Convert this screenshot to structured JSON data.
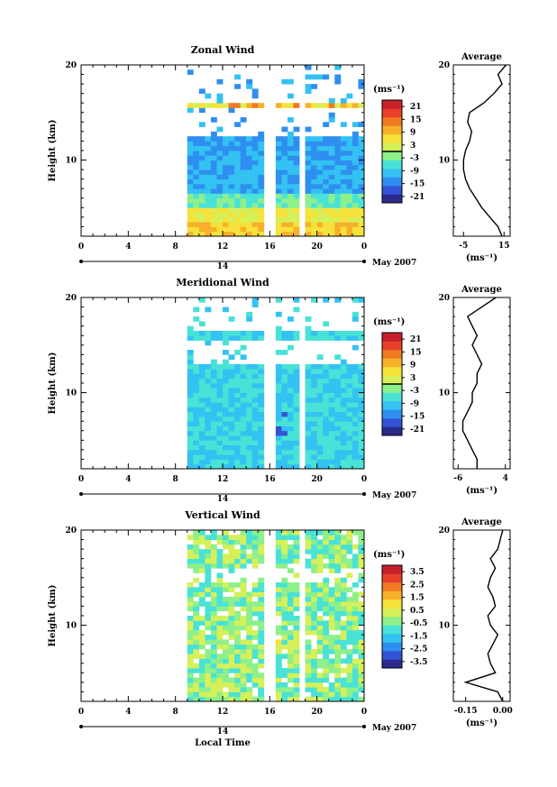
{
  "date_label": "May 2007",
  "day_label": "14",
  "xlabel_bottom": "Local Time",
  "average_title": "Average",
  "units": "(ms⁻¹)",
  "ylabel": "Height (km)",
  "x_ticks": [
    "0",
    "4",
    "8",
    "12",
    "16",
    "20",
    "0"
  ],
  "y_ticks": [
    "20",
    "10"
  ],
  "colormap": [
    "#2b2b8c",
    "#3353d6",
    "#2f8ff0",
    "#33c2f2",
    "#49e2d6",
    "#8ef08a",
    "#d6f05a",
    "#f5e23a",
    "#f7b02a",
    "#f07a22",
    "#e8402a",
    "#c8202a"
  ],
  "chart_data": [
    {
      "type": "heatmap",
      "title": "Zonal Wind",
      "xlabel": "Local Time",
      "ylabel": "Height (km)",
      "xlim": [
        0,
        24
      ],
      "ylim": [
        2,
        20
      ],
      "colorbar_ticks": [
        "21",
        "15",
        "9",
        "3",
        "-3",
        "-9",
        "-15",
        "-21"
      ],
      "colorbar_range": [
        -24,
        24
      ],
      "average_xticks": [
        "-5",
        "15"
      ],
      "average_xlim": [
        -10,
        18
      ],
      "average_profile": {
        "height": [
          2,
          3,
          4,
          5,
          6,
          7,
          8,
          9,
          10,
          11,
          12,
          13,
          14,
          15,
          16,
          17,
          18,
          19,
          20
        ],
        "value": [
          14,
          12,
          8,
          4,
          1,
          -2,
          -4,
          -5,
          -5,
          -4,
          -2,
          -1,
          -3,
          -2,
          5,
          10,
          14,
          12,
          16
        ]
      },
      "data_gaps_hours": [
        [
          15.2,
          16.5
        ],
        [
          18.1,
          18.7
        ]
      ],
      "data_start_hour": 9
    },
    {
      "type": "heatmap",
      "title": "Meridional Wind",
      "xlabel": "Local Time",
      "ylabel": "Height (km)",
      "xlim": [
        0,
        24
      ],
      "ylim": [
        2,
        20
      ],
      "colorbar_ticks": [
        "21",
        "15",
        "9",
        "3",
        "-3",
        "-9",
        "-15",
        "-21"
      ],
      "colorbar_range": [
        -24,
        24
      ],
      "average_xticks": [
        "-6",
        "4"
      ],
      "average_xlim": [
        -7,
        5
      ],
      "average_profile": {
        "height": [
          2,
          3,
          4,
          5,
          6,
          7,
          8,
          9,
          10,
          11,
          12,
          13,
          14,
          15,
          16,
          17,
          18,
          19,
          20
        ],
        "value": [
          -2,
          -2,
          -3,
          -4,
          -5,
          -5,
          -4,
          -3,
          -3,
          -2,
          -2,
          -1,
          -2,
          -3,
          -2,
          -3,
          -4,
          -1,
          2
        ]
      },
      "data_gaps_hours": [
        [
          15.2,
          16.5
        ],
        [
          18.1,
          18.7
        ]
      ],
      "data_start_hour": 9
    },
    {
      "type": "heatmap",
      "title": "Vertical Wind",
      "xlabel": "Local Time",
      "ylabel": "Height (km)",
      "xlim": [
        0,
        24
      ],
      "ylim": [
        2,
        20
      ],
      "colorbar_ticks": [
        "3.5",
        "2.5",
        "1.5",
        "0.5",
        "-0.5",
        "-1.5",
        "-2.5",
        "-3.5"
      ],
      "colorbar_range": [
        -4,
        4
      ],
      "average_xticks": [
        "-0.15",
        "0.00"
      ],
      "average_xlim": [
        -0.2,
        0.03
      ],
      "average_profile": {
        "height": [
          2,
          3,
          4,
          5,
          6,
          7,
          8,
          9,
          10,
          11,
          12,
          13,
          14,
          15,
          16,
          17,
          18,
          19,
          20
        ],
        "value": [
          0.0,
          -0.02,
          -0.15,
          -0.03,
          -0.05,
          -0.06,
          -0.04,
          -0.02,
          -0.05,
          -0.06,
          -0.03,
          -0.04,
          -0.06,
          -0.05,
          -0.03,
          -0.05,
          -0.02,
          -0.01,
          0.0
        ]
      },
      "data_gaps_hours": [
        [
          15.2,
          16.5
        ],
        [
          18.1,
          18.7
        ]
      ],
      "data_start_hour": 9
    }
  ]
}
